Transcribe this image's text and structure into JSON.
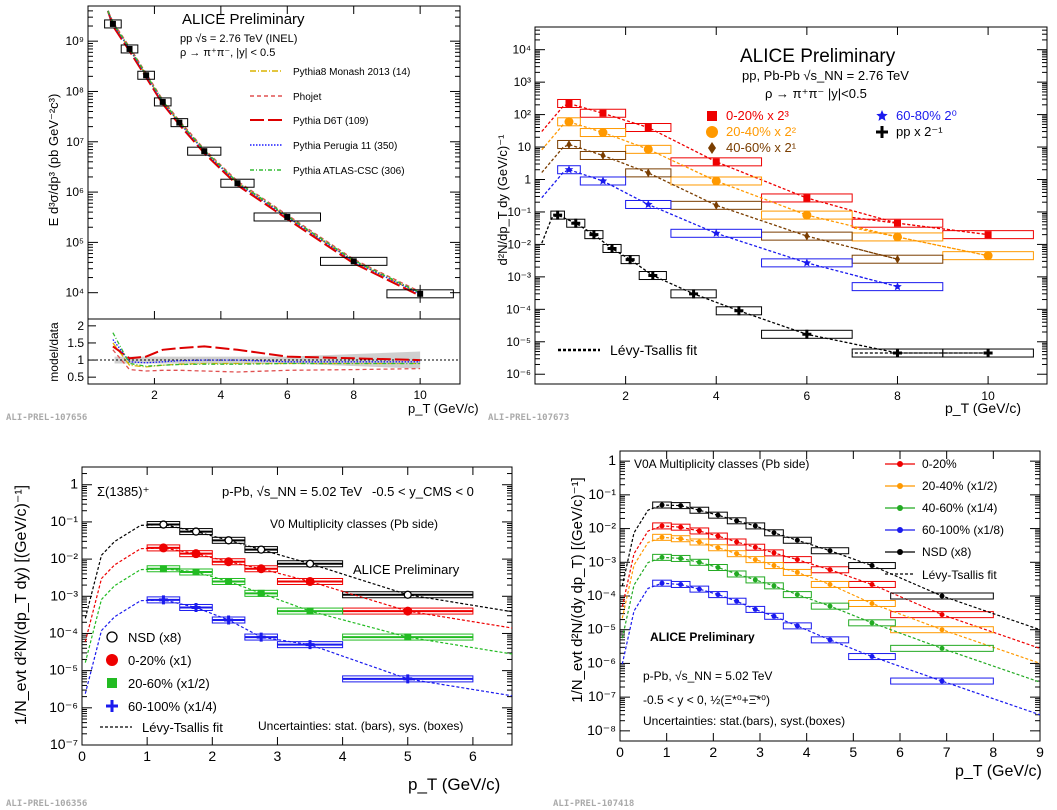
{
  "corner_labels": [
    "ALI-PREL-107656",
    "ALI-PREL-107673",
    "ALI-PREL-106356",
    "ALI-PREL-107418"
  ],
  "chart_data": [
    {
      "type": "scatter",
      "title": "ALICE Preliminary",
      "subtitle1": "pp √s = 2.76 TeV (INEL)",
      "subtitle2": "ρ → π⁺π⁻, |y| < 0.5",
      "ylabel": "E d³σ/dp³ (pb GeV⁻²c³)",
      "ratio_ylabel": "model/data",
      "xlabel": "p_T (GeV/c)",
      "log_y": true,
      "xlim": [
        0,
        11.2
      ],
      "ylim": [
        3000,
        5000000000
      ],
      "ratio_ylim": [
        0.3,
        2.2
      ],
      "x_ticks": [
        "2",
        "4",
        "6",
        "8",
        "10"
      ],
      "y_ticks": [
        "10⁴",
        "10⁵",
        "10⁶",
        "10⁷",
        "10⁸",
        "10⁹"
      ],
      "ratio_ticks": [
        "0.5",
        "1",
        "1.5",
        "2"
      ],
      "data": {
        "x": [
          0.75,
          1.25,
          1.75,
          2.25,
          2.75,
          3.5,
          4.5,
          6.0,
          8.0,
          10.0
        ],
        "xerr": [
          0.25,
          0.25,
          0.25,
          0.25,
          0.25,
          0.5,
          0.5,
          1.0,
          1.0,
          1.0
        ],
        "y": [
          2200000000,
          700000000,
          210000000,
          62000000,
          24000000,
          6500000,
          1500000,
          320000,
          42000,
          9500
        ]
      },
      "series": [
        {
          "name": "Pythia8 Monash 2013 (14)",
          "color": "#dab300",
          "style": "dashdot",
          "ratio": [
            1.5,
            0.85,
            0.8,
            0.85,
            0.88,
            0.9,
            0.9,
            0.9,
            0.9,
            0.9
          ]
        },
        {
          "name": "Phojet",
          "color": "#e05050",
          "style": "dash",
          "ratio": [
            1.3,
            0.72,
            0.68,
            0.7,
            0.7,
            0.68,
            0.65,
            0.7,
            0.72,
            0.75
          ]
        },
        {
          "name": "Pythia D6T (109)",
          "color": "#dd0000",
          "style": "longdash",
          "ratio": [
            1.4,
            1.05,
            1.1,
            1.3,
            1.35,
            1.4,
            1.3,
            1.1,
            1.05,
            1.0
          ]
        },
        {
          "name": "Pythia Perugia 11 (350)",
          "color": "#1a1aff",
          "style": "dot",
          "ratio": [
            1.6,
            0.95,
            0.92,
            0.95,
            0.98,
            1.0,
            1.0,
            0.95,
            0.95,
            0.95
          ]
        },
        {
          "name": "Pythia ATLAS-CSC (306)",
          "color": "#33bb33",
          "style": "dashdot2",
          "ratio": [
            1.8,
            0.9,
            0.82,
            0.85,
            0.87,
            0.88,
            0.88,
            0.9,
            0.9,
            0.9
          ]
        }
      ]
    },
    {
      "type": "scatter",
      "title": "ALICE Preliminary",
      "subtitle1": "pp, Pb-Pb √s_NN = 2.76 TeV",
      "subtitle2": "ρ → π⁺π⁻ |y|<0.5",
      "ylabel": "d²N/dp_T dy (GeV/c)⁻¹",
      "xlabel": "p_T (GeV/c)",
      "log_y": true,
      "xlim": [
        0,
        11.3
      ],
      "ylim": [
        5e-07,
        50000
      ],
      "x_ticks": [
        "2",
        "4",
        "6",
        "8",
        "10"
      ],
      "y_ticks": [
        "10⁻⁶",
        "10⁻⁵",
        "10⁻⁴",
        "10⁻³",
        "10⁻²",
        "10⁻¹",
        "1",
        "10",
        "10²",
        "10³",
        "10⁴"
      ],
      "fit_label": "Lévy-Tsallis fit",
      "series": [
        {
          "name": "0-20%  x 2³",
          "color": "#ee0000",
          "marker": "square",
          "x": [
            0.75,
            1.5,
            2.5,
            4.0,
            6.0,
            8.0,
            10.0
          ],
          "xerr": [
            0.25,
            0.5,
            0.5,
            1.0,
            1.0,
            1.0,
            1.0
          ],
          "y": [
            220,
            110,
            40,
            3.5,
            0.27,
            0.045,
            0.02
          ]
        },
        {
          "name": "20-40%  x 2²",
          "color": "#ff9900",
          "marker": "circle",
          "x": [
            0.75,
            1.5,
            2.5,
            4.0,
            6.0,
            8.0,
            10.0
          ],
          "xerr": [
            0.25,
            0.5,
            0.5,
            1.0,
            1.0,
            1.0,
            1.0
          ],
          "y": [
            60,
            28,
            8.5,
            0.9,
            0.08,
            0.017,
            0.0045
          ]
        },
        {
          "name": "40-60%  x 2¹",
          "color": "#7a3d00",
          "marker": "diamond",
          "x": [
            0.75,
            1.5,
            2.5,
            4.0,
            6.0,
            8.0
          ],
          "xerr": [
            0.25,
            0.5,
            0.5,
            1.0,
            1.0,
            1.0
          ],
          "y": [
            12,
            5.5,
            1.6,
            0.16,
            0.018,
            0.0035
          ]
        },
        {
          "name": "60-80% 2⁰",
          "color": "#1a1aee",
          "marker": "star",
          "x": [
            0.75,
            1.5,
            2.5,
            4.0,
            6.0,
            8.0
          ],
          "xerr": [
            0.25,
            0.5,
            0.5,
            1.0,
            1.0,
            1.0
          ],
          "y": [
            2.0,
            0.9,
            0.17,
            0.022,
            0.0027,
            0.0005
          ]
        },
        {
          "name": "pp x 2⁻¹",
          "color": "#000000",
          "marker": "cross",
          "x": [
            0.5,
            0.9,
            1.3,
            1.7,
            2.1,
            2.6,
            3.5,
            4.5,
            6.0,
            8.0,
            10.0
          ],
          "xerr": [
            0.15,
            0.2,
            0.2,
            0.2,
            0.2,
            0.3,
            0.5,
            0.5,
            1.0,
            1.0,
            1.0
          ],
          "y": [
            0.08,
            0.045,
            0.02,
            0.0075,
            0.0034,
            0.0011,
            0.0003,
            9e-05,
            1.7e-05,
            4.5e-06,
            4.5e-06
          ]
        }
      ]
    },
    {
      "type": "scatter",
      "title": "Σ(1385)⁺",
      "subtitle1": "p-Pb, √s_NN = 5.02 TeV",
      "subtitle2": "-0.5 < y_CMS < 0",
      "subtitle3": "V0 Multiplicity classes (Pb side)",
      "prelim": "ALICE Preliminary",
      "uncertainties": "Uncertainties: stat. (bars), sys. (boxes)",
      "ylabel": "1/N_evt d²N/(dp_T dy) [(GeV/c)⁻¹]",
      "xlabel": "p_T (GeV/c)",
      "log_y": true,
      "xlim": [
        0,
        6.6
      ],
      "ylim": [
        1e-07,
        3
      ],
      "x_ticks": [
        "0",
        "1",
        "2",
        "3",
        "4",
        "5",
        "6"
      ],
      "y_ticks": [
        "10⁻⁷",
        "10⁻⁶",
        "10⁻⁵",
        "10⁻⁴",
        "10⁻³",
        "10⁻²",
        "10⁻¹",
        "1"
      ],
      "fit_label": "Lévy-Tsallis fit",
      "series": [
        {
          "name": "NSD (x8)",
          "color": "#000000",
          "marker": "open-circle",
          "x": [
            1.25,
            1.75,
            2.25,
            2.75,
            3.5,
            5.0
          ],
          "xerr": [
            0.25,
            0.25,
            0.25,
            0.25,
            0.5,
            1.0
          ],
          "y": [
            0.085,
            0.055,
            0.032,
            0.018,
            0.0075,
            0.0011
          ]
        },
        {
          "name": "0-20% (x1)",
          "color": "#ee0000",
          "marker": "circle",
          "x": [
            1.25,
            1.75,
            2.25,
            2.75,
            3.5,
            5.0
          ],
          "xerr": [
            0.25,
            0.25,
            0.25,
            0.25,
            0.5,
            1.0
          ],
          "y": [
            0.02,
            0.014,
            0.0085,
            0.0055,
            0.0025,
            0.0004
          ]
        },
        {
          "name": "20-60% (x1/2)",
          "color": "#22bb22",
          "marker": "square",
          "x": [
            1.25,
            1.75,
            2.25,
            2.75,
            3.5,
            5.0
          ],
          "xerr": [
            0.25,
            0.25,
            0.25,
            0.25,
            0.5,
            1.0
          ],
          "y": [
            0.0055,
            0.0045,
            0.0025,
            0.0012,
            0.0004,
            8e-05
          ]
        },
        {
          "name": "60-100% (x1/4)",
          "color": "#1a1aee",
          "marker": "cross",
          "x": [
            1.25,
            1.75,
            2.25,
            2.75,
            3.5,
            5.0
          ],
          "xerr": [
            0.25,
            0.25,
            0.25,
            0.25,
            0.5,
            1.0
          ],
          "y": [
            0.0008,
            0.0005,
            0.00023,
            8e-05,
            5e-05,
            6e-06
          ]
        }
      ]
    },
    {
      "type": "scatter",
      "title": "V0A Multiplicity classes (Pb side)",
      "prelim": "ALICE Preliminary",
      "subtitle1": "p-Pb, √s_NN = 5.02 TeV",
      "subtitle2": "-0.5 < y < 0, ½(Ξ*⁰+Ξ̄*⁰)",
      "uncertainties": "Uncertainties: stat.(bars), syst.(boxes)",
      "ylabel": "1/N_evt d²N/(dy dp_T) [(GeV/c)⁻¹]",
      "xlabel": "p_T (GeV/c)",
      "log_y": true,
      "xlim": [
        0,
        9
      ],
      "ylim": [
        5e-09,
        2
      ],
      "x_ticks": [
        "0",
        "1",
        "2",
        "3",
        "4",
        "5",
        "6",
        "7",
        "8",
        "9"
      ],
      "y_ticks": [
        "10⁻⁸",
        "10⁻⁷",
        "10⁻⁶",
        "10⁻⁵",
        "10⁻⁴",
        "10⁻³",
        "10⁻²",
        "10⁻¹",
        "1"
      ],
      "fit_label": "Lévy-Tsallis fit",
      "series": [
        {
          "name": "0-20%",
          "color": "#ee0000",
          "x": [
            0.9,
            1.3,
            1.7,
            2.1,
            2.5,
            2.9,
            3.3,
            3.8,
            4.5,
            5.4,
            6.9
          ],
          "xerr": [
            0.2,
            0.2,
            0.2,
            0.2,
            0.2,
            0.2,
            0.2,
            0.3,
            0.4,
            0.5,
            1.1
          ],
          "y": [
            0.012,
            0.011,
            0.0085,
            0.006,
            0.004,
            0.0028,
            0.0019,
            0.0012,
            0.0006,
            0.00022,
            2.8e-05
          ]
        },
        {
          "name": "20-40% (x1/2)",
          "color": "#ff9900",
          "x": [
            0.9,
            1.3,
            1.7,
            2.1,
            2.5,
            2.9,
            3.3,
            3.8,
            4.5,
            5.4,
            6.9
          ],
          "xerr": [
            0.2,
            0.2,
            0.2,
            0.2,
            0.2,
            0.2,
            0.2,
            0.3,
            0.4,
            0.5,
            1.1
          ],
          "y": [
            0.0055,
            0.005,
            0.004,
            0.0027,
            0.0018,
            0.0012,
            0.0008,
            0.0005,
            0.00022,
            6e-05,
            1e-05
          ]
        },
        {
          "name": "40-60% (x1/4)",
          "color": "#22aa22",
          "x": [
            0.9,
            1.3,
            1.7,
            2.1,
            2.5,
            2.9,
            3.3,
            3.8,
            4.5,
            5.4,
            6.9
          ],
          "xerr": [
            0.2,
            0.2,
            0.2,
            0.2,
            0.2,
            0.2,
            0.2,
            0.3,
            0.4,
            0.5,
            1.1
          ],
          "y": [
            0.0014,
            0.0013,
            0.001,
            0.0007,
            0.00045,
            0.0003,
            0.0002,
            0.00011,
            5e-05,
            1.6e-05,
            2.8e-06
          ]
        },
        {
          "name": "60-100% (x1/8)",
          "color": "#1a1aee",
          "x": [
            0.9,
            1.3,
            1.7,
            2.1,
            2.5,
            2.9,
            3.3,
            3.8,
            4.5,
            5.4,
            6.9
          ],
          "xerr": [
            0.2,
            0.2,
            0.2,
            0.2,
            0.2,
            0.2,
            0.2,
            0.3,
            0.4,
            0.5,
            1.1
          ],
          "y": [
            0.00024,
            0.00022,
            0.00016,
            0.00011,
            7e-05,
            4e-05,
            2.5e-05,
            1.3e-05,
            5e-06,
            1.6e-06,
            3e-07
          ]
        },
        {
          "name": "NSD (x8)",
          "color": "#000000",
          "x": [
            0.9,
            1.3,
            1.7,
            2.1,
            2.5,
            2.9,
            3.3,
            3.8,
            4.5,
            5.4,
            6.9
          ],
          "xerr": [
            0.2,
            0.2,
            0.2,
            0.2,
            0.2,
            0.2,
            0.2,
            0.3,
            0.4,
            0.5,
            1.1
          ],
          "y": [
            0.05,
            0.048,
            0.035,
            0.025,
            0.017,
            0.012,
            0.0075,
            0.0045,
            0.0022,
            0.0008,
            0.0001
          ]
        }
      ]
    }
  ]
}
